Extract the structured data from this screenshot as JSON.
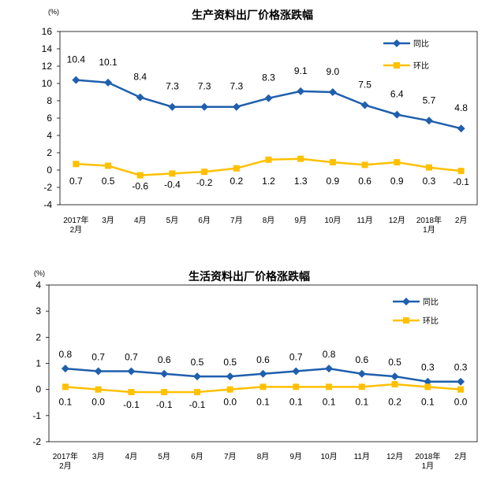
{
  "chart_data": [
    {
      "type": "line",
      "title": "生产资料出厂价格涨跌幅",
      "unit": "(%)",
      "categories": [
        "2017年\n2月",
        "3月",
        "4月",
        "5月",
        "6月",
        "7月",
        "8月",
        "9月",
        "10月",
        "11月",
        "12月",
        "2018年\n1月",
        "2月"
      ],
      "ylim": [
        -4,
        16
      ],
      "yticks": [
        -4,
        -2,
        0,
        2,
        4,
        6,
        8,
        10,
        12,
        14,
        16
      ],
      "legend_position": "top-right",
      "grid": false,
      "series": [
        {
          "name": "同比",
          "color": "#1f5fad",
          "marker": "diamond",
          "values": [
            10.4,
            10.1,
            8.4,
            7.3,
            7.3,
            7.3,
            8.3,
            9.1,
            9.0,
            7.5,
            6.4,
            5.7,
            4.8
          ],
          "labels": [
            "10.4",
            "10.1",
            "8.4",
            "7.3",
            "7.3",
            "7.3",
            "8.3",
            "9.1",
            "9.0",
            "7.5",
            "6.4",
            "5.7",
            "4.8"
          ]
        },
        {
          "name": "环比",
          "color": "#ffc000",
          "marker": "square",
          "values": [
            0.7,
            0.5,
            -0.6,
            -0.4,
            -0.2,
            0.2,
            1.2,
            1.3,
            0.9,
            0.6,
            0.9,
            0.3,
            -0.1
          ],
          "labels": [
            "0.7",
            "0.5",
            "-0.6",
            "-0.4",
            "-0.2",
            "0.2",
            "1.2",
            "1.3",
            "0.9",
            "0.6",
            "0.9",
            "0.3",
            "-0.1"
          ]
        }
      ]
    },
    {
      "type": "line",
      "title": "生活资料出厂价格涨跌幅",
      "unit": "(%)",
      "categories": [
        "2017年\n2月",
        "3月",
        "4月",
        "5月",
        "6月",
        "7月",
        "8月",
        "9月",
        "10月",
        "11月",
        "12月",
        "2018年\n1月",
        "2月"
      ],
      "ylim": [
        -2,
        4
      ],
      "yticks": [
        -2,
        -1,
        0,
        1,
        2,
        3,
        4
      ],
      "legend_position": "top-right",
      "grid": false,
      "series": [
        {
          "name": "同比",
          "color": "#1f5fad",
          "marker": "diamond",
          "values": [
            0.8,
            0.7,
            0.7,
            0.6,
            0.5,
            0.5,
            0.6,
            0.7,
            0.8,
            0.6,
            0.5,
            0.3,
            0.3
          ],
          "labels": [
            "0.8",
            "0.7",
            "0.7",
            "0.6",
            "0.5",
            "0.5",
            "0.6",
            "0.7",
            "0.8",
            "0.6",
            "0.5",
            "0.3",
            "0.3"
          ]
        },
        {
          "name": "环比",
          "color": "#ffc000",
          "marker": "square",
          "values": [
            0.1,
            0.0,
            -0.1,
            -0.1,
            -0.1,
            0.0,
            0.1,
            0.1,
            0.1,
            0.1,
            0.2,
            0.1,
            0.0
          ],
          "labels": [
            "0.1",
            "0.0",
            "-0.1",
            "-0.1",
            "-0.1",
            "0.0",
            "0.1",
            "0.1",
            "0.1",
            "0.1",
            "0.2",
            "0.1",
            "0.0"
          ]
        }
      ]
    }
  ]
}
